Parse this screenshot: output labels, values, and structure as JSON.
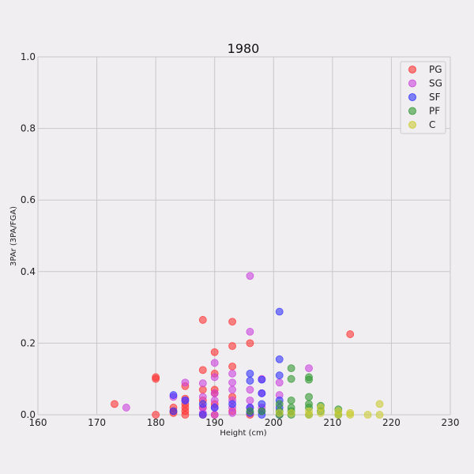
{
  "chart_data": {
    "type": "scatter",
    "title": "1980",
    "xlabel": "Height (cm)",
    "ylabel": "3PAr (3PA/FGA)",
    "xlim": [
      160,
      230
    ],
    "ylim": [
      0,
      1.0
    ],
    "xticks": [
      "160",
      "170",
      "180",
      "190",
      "200",
      "210",
      "220",
      "230"
    ],
    "yticks": [
      "0.0",
      "0.2",
      "0.4",
      "0.6",
      "0.8",
      "1.0"
    ],
    "grid": true,
    "legend_position": "top-right",
    "series": [
      {
        "name": "PG",
        "color": "#ff3333",
        "points": [
          [
            173,
            0.03
          ],
          [
            180,
            0.105
          ],
          [
            180,
            0.1
          ],
          [
            180,
            0.0
          ],
          [
            183,
            0.02
          ],
          [
            183,
            0.01
          ],
          [
            183,
            0.005
          ],
          [
            185,
            0.08
          ],
          [
            185,
            0.045
          ],
          [
            185,
            0.03
          ],
          [
            185,
            0.02
          ],
          [
            185,
            0.01
          ],
          [
            185,
            0.0
          ],
          [
            188,
            0.265
          ],
          [
            188,
            0.125
          ],
          [
            188,
            0.07
          ],
          [
            188,
            0.04
          ],
          [
            188,
            0.02
          ],
          [
            188,
            0.0
          ],
          [
            190,
            0.175
          ],
          [
            190,
            0.115
          ],
          [
            190,
            0.07
          ],
          [
            190,
            0.06
          ],
          [
            190,
            0.03
          ],
          [
            190,
            0.0
          ],
          [
            193,
            0.26
          ],
          [
            193,
            0.192
          ],
          [
            193,
            0.135
          ],
          [
            193,
            0.05
          ],
          [
            193,
            0.01
          ],
          [
            196,
            0.2
          ],
          [
            196,
            0.0
          ],
          [
            213,
            0.225
          ]
        ]
      },
      {
        "name": "SG",
        "color": "#cc44dd",
        "points": [
          [
            175,
            0.02
          ],
          [
            183,
            0.05
          ],
          [
            185,
            0.09
          ],
          [
            185,
            0.04
          ],
          [
            188,
            0.088
          ],
          [
            188,
            0.05
          ],
          [
            188,
            0.02
          ],
          [
            188,
            0.005
          ],
          [
            190,
            0.145
          ],
          [
            190,
            0.105
          ],
          [
            190,
            0.06
          ],
          [
            190,
            0.04
          ],
          [
            190,
            0.02
          ],
          [
            190,
            0.0
          ],
          [
            193,
            0.115
          ],
          [
            193,
            0.09
          ],
          [
            193,
            0.07
          ],
          [
            193,
            0.04
          ],
          [
            193,
            0.02
          ],
          [
            193,
            0.005
          ],
          [
            196,
            0.388
          ],
          [
            196,
            0.232
          ],
          [
            196,
            0.07
          ],
          [
            196,
            0.04
          ],
          [
            196,
            0.02
          ],
          [
            198,
            0.1
          ],
          [
            198,
            0.06
          ],
          [
            198,
            0.02
          ],
          [
            201,
            0.09
          ],
          [
            201,
            0.055
          ],
          [
            206,
            0.13
          ]
        ]
      },
      {
        "name": "SF",
        "color": "#3333ff",
        "points": [
          [
            183,
            0.055
          ],
          [
            183,
            0.01
          ],
          [
            185,
            0.04
          ],
          [
            188,
            0.03
          ],
          [
            188,
            0.0
          ],
          [
            190,
            0.02
          ],
          [
            193,
            0.03
          ],
          [
            196,
            0.115
          ],
          [
            196,
            0.095
          ],
          [
            196,
            0.02
          ],
          [
            196,
            0.005
          ],
          [
            198,
            0.098
          ],
          [
            198,
            0.06
          ],
          [
            198,
            0.03
          ],
          [
            198,
            0.01
          ],
          [
            198,
            0.0
          ],
          [
            201,
            0.288
          ],
          [
            201,
            0.155
          ],
          [
            201,
            0.11
          ],
          [
            201,
            0.04
          ],
          [
            201,
            0.02
          ],
          [
            201,
            0.0
          ]
        ]
      },
      {
        "name": "PF",
        "color": "#339933",
        "points": [
          [
            196,
            0.01
          ],
          [
            198,
            0.01
          ],
          [
            201,
            0.03
          ],
          [
            201,
            0.01
          ],
          [
            201,
            0.0
          ],
          [
            203,
            0.13
          ],
          [
            203,
            0.1
          ],
          [
            203,
            0.04
          ],
          [
            203,
            0.02
          ],
          [
            203,
            0.01
          ],
          [
            203,
            0.0
          ],
          [
            206,
            0.105
          ],
          [
            206,
            0.098
          ],
          [
            206,
            0.05
          ],
          [
            206,
            0.03
          ],
          [
            206,
            0.02
          ],
          [
            206,
            0.0
          ],
          [
            208,
            0.025
          ],
          [
            208,
            0.01
          ],
          [
            211,
            0.015
          ],
          [
            211,
            0.0
          ]
        ]
      },
      {
        "name": "C",
        "color": "#cccc33",
        "points": [
          [
            201,
            0.005
          ],
          [
            203,
            0.005
          ],
          [
            206,
            0.01
          ],
          [
            206,
            0.0
          ],
          [
            208,
            0.02
          ],
          [
            208,
            0.005
          ],
          [
            211,
            0.01
          ],
          [
            211,
            0.0
          ],
          [
            213,
            0.005
          ],
          [
            213,
            0.0
          ],
          [
            216,
            0.0
          ],
          [
            218,
            0.03
          ],
          [
            218,
            0.0
          ]
        ]
      }
    ]
  }
}
